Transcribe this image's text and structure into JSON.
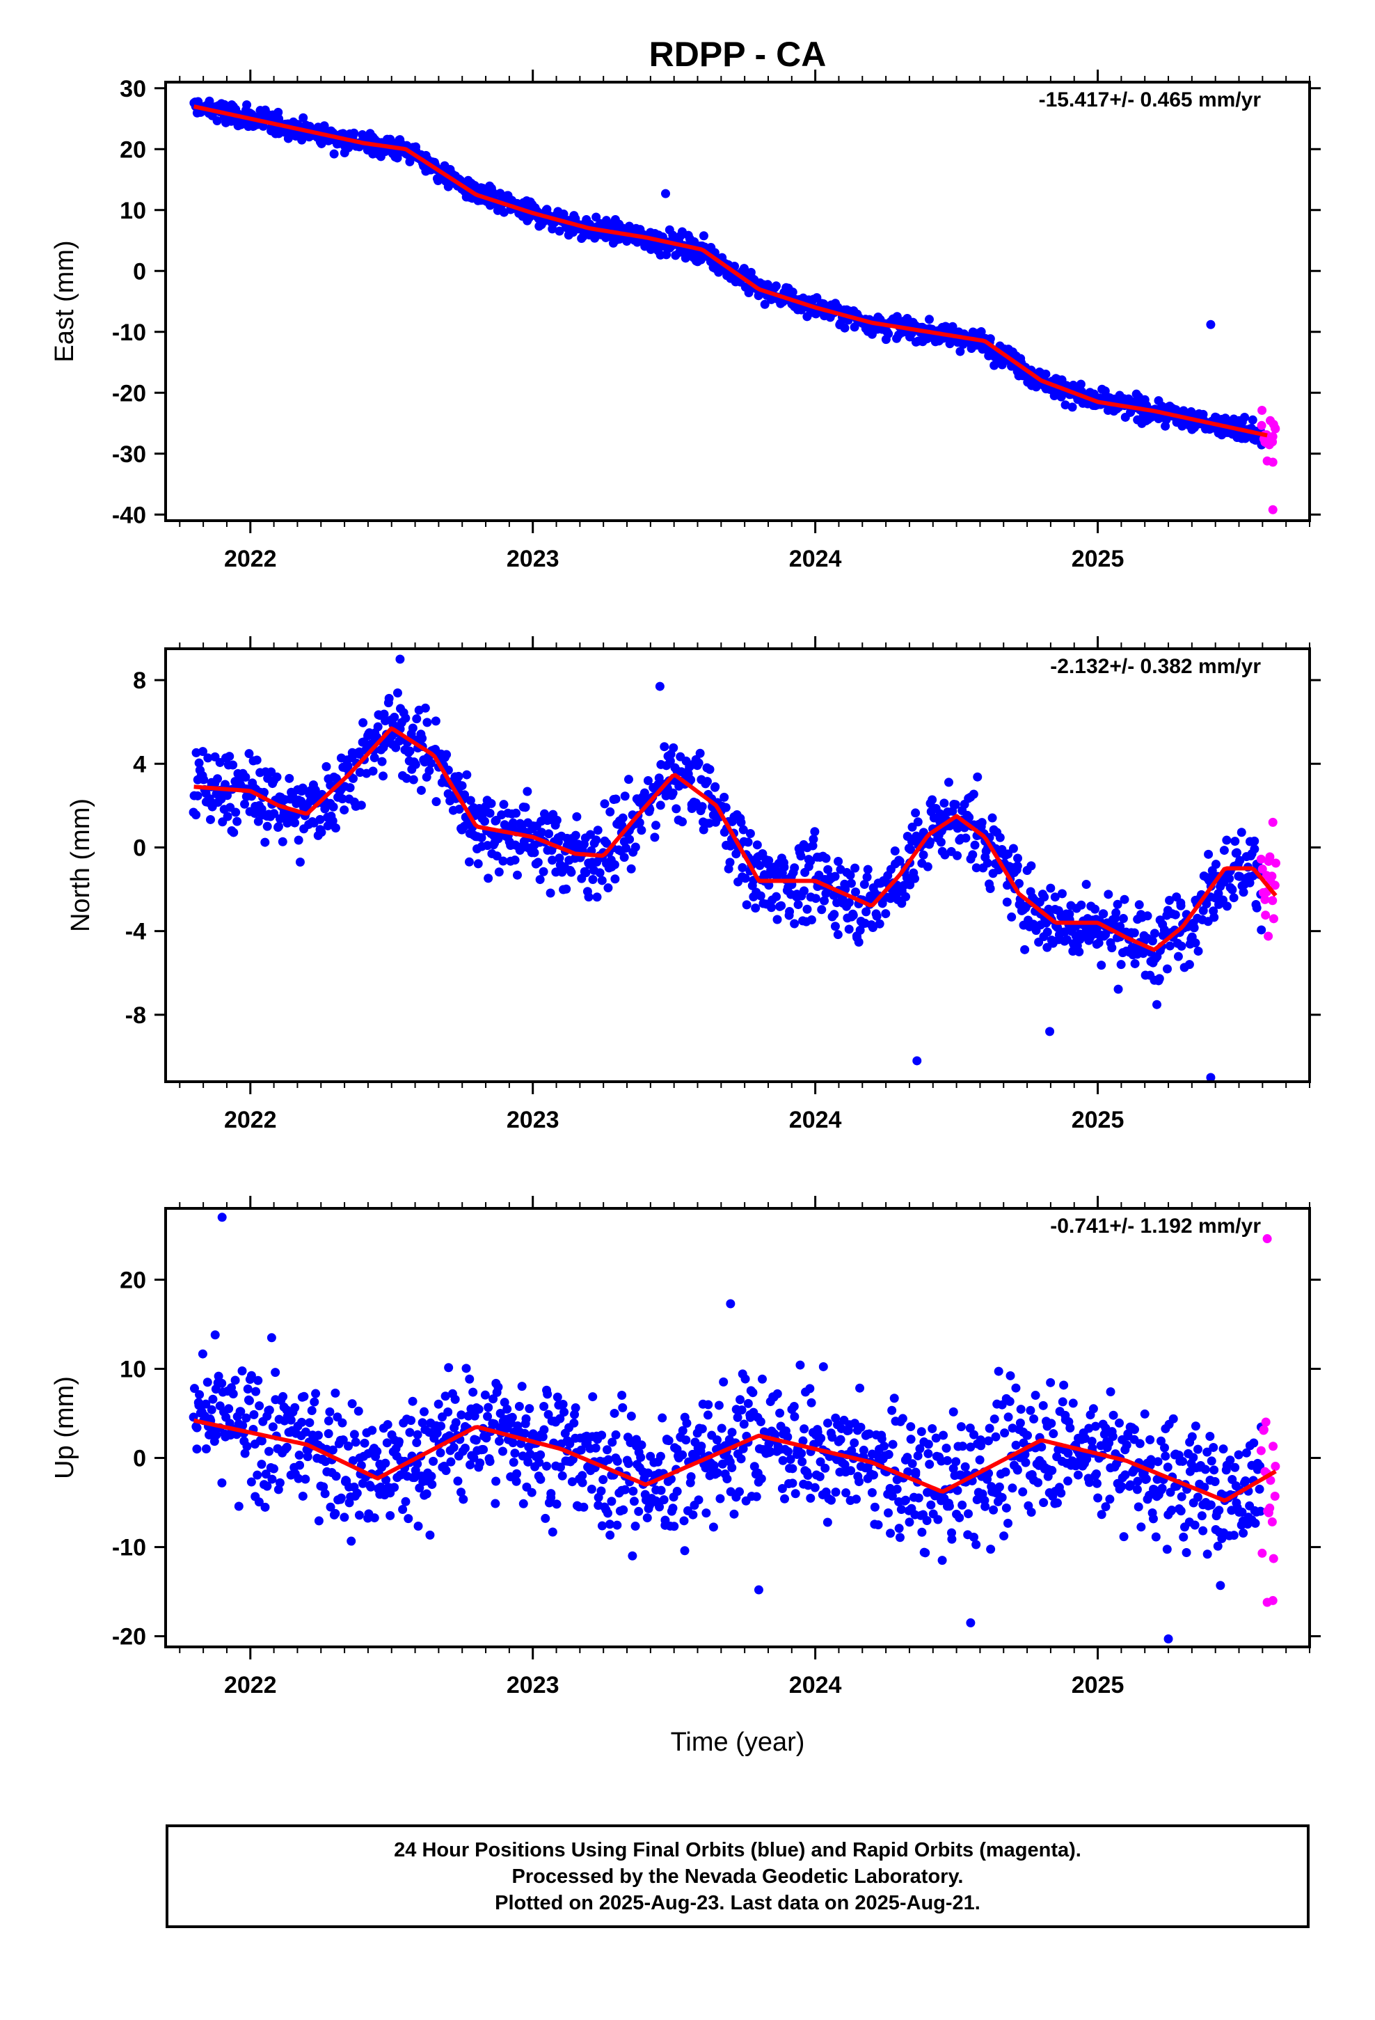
{
  "chart_data": [
    {
      "type": "scatter",
      "title": "RDPP - CA",
      "ylabel": "East (mm)",
      "xlabel": "",
      "rate_label": "-15.417+/- 0.465 mm/yr",
      "xlim": [
        2021.7,
        2025.75
      ],
      "ylim": [
        -41,
        31
      ],
      "yticks": [
        30,
        20,
        10,
        0,
        -10,
        -20,
        -30,
        -40
      ],
      "xticks": [
        2022,
        2023,
        2024,
        2025
      ],
      "fit": {
        "x": [
          2021.8,
          2022.0,
          2022.2,
          2022.4,
          2022.55,
          2022.8,
          2023.0,
          2023.2,
          2023.4,
          2023.6,
          2023.8,
          2024.0,
          2024.2,
          2024.4,
          2024.6,
          2024.8,
          2025.0,
          2025.2,
          2025.4,
          2025.6
        ],
        "y": [
          27,
          25,
          23,
          21,
          20,
          12.5,
          9.5,
          7,
          5.5,
          3.5,
          -3,
          -6,
          -8.5,
          -10,
          -11.5,
          -18,
          -21.5,
          -23,
          -25,
          -27
        ]
      },
      "series": [
        {
          "name": "Final Orbits",
          "color": "#0000ff",
          "x_start": 2021.8,
          "x_end": 2025.58,
          "count": 1250,
          "noise": 1.3,
          "outliers": [
            [
              2023.47,
              12.7
            ],
            [
              2025.4,
              -8.8
            ]
          ]
        },
        {
          "name": "Rapid Orbits",
          "color": "#ff00ff",
          "x_start": 2025.58,
          "x_end": 2025.63,
          "count": 16,
          "noise": 2.5,
          "outliers": [
            [
              2025.62,
              -39.2
            ],
            [
              2025.6,
              -31.2
            ],
            [
              2025.62,
              -31.4
            ]
          ]
        }
      ]
    },
    {
      "type": "scatter",
      "title": "",
      "ylabel": "North (mm)",
      "xlabel": "",
      "rate_label": "-2.132+/- 0.382 mm/yr",
      "xlim": [
        2021.7,
        2025.75
      ],
      "ylim": [
        -11.2,
        9.5
      ],
      "yticks": [
        8,
        4,
        0,
        -4,
        -8
      ],
      "xticks": [
        2022,
        2023,
        2024,
        2025
      ],
      "fit": {
        "x": [
          2021.8,
          2022.0,
          2022.1,
          2022.2,
          2022.35,
          2022.5,
          2022.65,
          2022.8,
          2023.0,
          2023.15,
          2023.25,
          2023.35,
          2023.5,
          2023.65,
          2023.8,
          2024.0,
          2024.1,
          2024.2,
          2024.3,
          2024.4,
          2024.5,
          2024.6,
          2024.72,
          2024.85,
          2025.0,
          2025.1,
          2025.2,
          2025.3,
          2025.45,
          2025.55,
          2025.63
        ],
        "y": [
          2.9,
          2.7,
          2.0,
          1.6,
          3.5,
          5.7,
          4.4,
          1.0,
          0.5,
          -0.3,
          -0.4,
          1.2,
          3.5,
          2.0,
          -1.6,
          -1.6,
          -2.2,
          -2.8,
          -1.3,
          0.6,
          1.5,
          0.5,
          -2.2,
          -3.6,
          -3.6,
          -4.3,
          -4.9,
          -3.8,
          -1.0,
          -1.0,
          -2.3
        ]
      },
      "series": [
        {
          "name": "Final Orbits",
          "color": "#0000ff",
          "x_start": 2021.8,
          "x_end": 2025.58,
          "count": 1250,
          "noise": 1.3,
          "outliers": [
            [
              2023.45,
              7.7
            ],
            [
              2024.36,
              -10.2
            ],
            [
              2024.83,
              -8.8
            ],
            [
              2025.4,
              -11.0
            ],
            [
              2022.53,
              9.0
            ]
          ]
        },
        {
          "name": "Rapid Orbits",
          "color": "#ff00ff",
          "x_start": 2025.58,
          "x_end": 2025.63,
          "count": 16,
          "noise": 1.4,
          "outliers": [
            [
              2025.62,
              1.2
            ]
          ]
        }
      ]
    },
    {
      "type": "scatter",
      "title": "",
      "ylabel": "Up (mm)",
      "xlabel": "Time (year)",
      "rate_label": "-0.741+/- 1.192 mm/yr",
      "xlim": [
        2021.7,
        2025.75
      ],
      "ylim": [
        -21.2,
        28
      ],
      "yticks": [
        20,
        10,
        0,
        -10,
        -20
      ],
      "xticks": [
        2022,
        2023,
        2024,
        2025
      ],
      "fit": {
        "x": [
          2021.8,
          2022.2,
          2022.45,
          2022.8,
          2023.1,
          2023.4,
          2023.8,
          2024.2,
          2024.45,
          2024.8,
          2025.1,
          2025.45,
          2025.63
        ],
        "y": [
          4.2,
          1.5,
          -2.3,
          3.5,
          1.0,
          -3.0,
          2.5,
          -0.5,
          -3.8,
          2.0,
          -0.3,
          -4.8,
          -1.5
        ]
      },
      "series": [
        {
          "name": "Final Orbits",
          "color": "#0000ff",
          "x_start": 2021.8,
          "x_end": 2025.58,
          "count": 1250,
          "noise": 5.0,
          "outliers": [
            [
              2021.9,
              27.0
            ],
            [
              2023.7,
              17.3
            ],
            [
              2025.25,
              -20.3
            ],
            [
              2023.8,
              -14.8
            ],
            [
              2024.55,
              -18.5
            ]
          ]
        },
        {
          "name": "Rapid Orbits",
          "color": "#ff00ff",
          "x_start": 2025.58,
          "x_end": 2025.63,
          "count": 16,
          "noise": 7.0,
          "outliers": [
            [
              2025.6,
              24.6
            ],
            [
              2025.62,
              -16.0
            ],
            [
              2025.6,
              -16.2
            ]
          ]
        }
      ]
    }
  ],
  "caption": {
    "line1": "24 Hour Positions Using Final Orbits (blue) and Rapid Orbits (magenta).",
    "line2": "Processed by the Nevada Geodetic Laboratory.",
    "line3": "Plotted on 2025-Aug-23. Last data on 2025-Aug-21."
  }
}
